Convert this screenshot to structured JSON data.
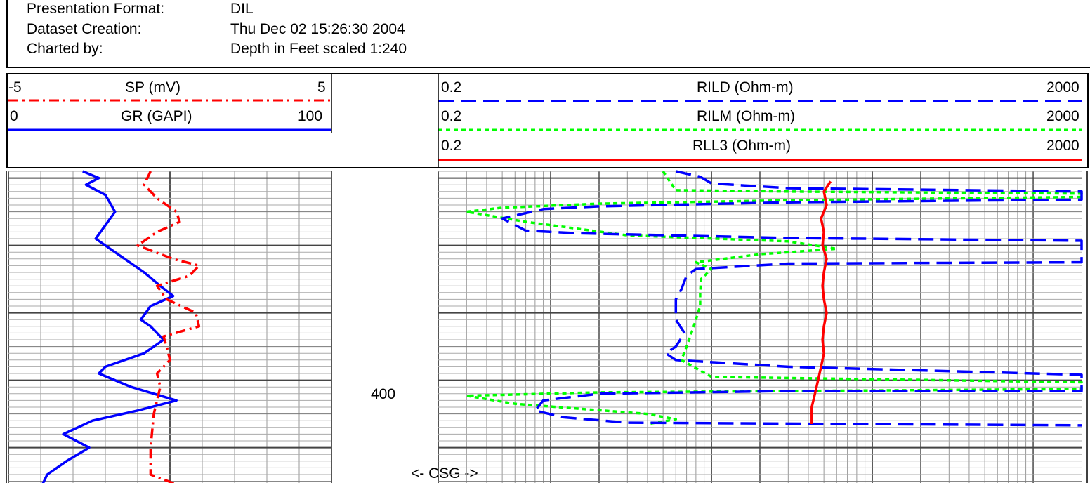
{
  "header": {
    "rows": [
      {
        "label": "Presentation Format:",
        "value": "DIL"
      },
      {
        "label": "Dataset Creation:",
        "value": "Thu Dec 02 15:26:30 2004"
      },
      {
        "label": "Charted by:",
        "value": "Depth in Feet scaled 1:240"
      }
    ]
  },
  "colors": {
    "red": "#ff0000",
    "blue": "#0000ff",
    "green": "#00ff00",
    "grid": "#888888"
  },
  "chart_data": [
    {
      "type": "line",
      "track": "left",
      "y_unit": "Depth in Feet",
      "depth_label": "400",
      "series": [
        {
          "name": "SP (mV)",
          "min": "-5",
          "max": "5",
          "xlim": [
            -5,
            5
          ],
          "color": "#ff0000",
          "style": "dash-dot",
          "points": [
            [
              -0.6,
              349
            ],
            [
              -0.8,
              351
            ],
            [
              -0.4,
              353
            ],
            [
              0.2,
              355
            ],
            [
              0.3,
              356.5
            ],
            [
              -0.4,
              358
            ],
            [
              -1,
              360
            ],
            [
              0.1,
              362
            ],
            [
              0.9,
              363
            ],
            [
              0.6,
              364.5
            ],
            [
              -0.4,
              366
            ],
            [
              -0.1,
              368
            ],
            [
              0.8,
              370
            ],
            [
              0.9,
              372
            ],
            [
              -0.2,
              373.5
            ],
            [
              -0.1,
              375
            ],
            [
              0,
              377
            ],
            [
              -0.4,
              379
            ],
            [
              -0.3,
              381
            ],
            [
              -0.5,
              385
            ],
            [
              -0.6,
              390
            ],
            [
              -0.6,
              394
            ],
            [
              0.5,
              396
            ]
          ]
        },
        {
          "name": "GR (GAPI)",
          "min": "0",
          "max": "100",
          "xlim": [
            0,
            100
          ],
          "color": "#0000ff",
          "style": "solid",
          "points": [
            [
              23,
              349
            ],
            [
              28,
              350
            ],
            [
              24,
              351
            ],
            [
              30,
              352.5
            ],
            [
              33,
              355
            ],
            [
              30,
              357
            ],
            [
              27,
              359
            ],
            [
              33,
              361
            ],
            [
              42,
              364
            ],
            [
              47,
              366
            ],
            [
              51,
              367.5
            ],
            [
              44,
              369
            ],
            [
              41,
              371
            ],
            [
              44,
              372
            ],
            [
              48,
              374
            ],
            [
              42,
              376
            ],
            [
              30,
              378
            ],
            [
              28,
              379
            ],
            [
              38,
              381
            ],
            [
              52,
              383
            ],
            [
              40,
              384.5
            ],
            [
              26,
              386
            ],
            [
              17,
              388
            ],
            [
              25,
              390
            ],
            [
              18,
              392
            ],
            [
              12,
              394
            ],
            [
              10,
              396
            ]
          ]
        }
      ]
    },
    {
      "type": "line",
      "track": "right",
      "x_scale": "log",
      "annotation": "<- CSG ->",
      "series": [
        {
          "name": "RILD (Ohm-m)",
          "min": "0.2",
          "max": "2000",
          "xlim": [
            0.2,
            2000
          ],
          "color": "#0000ff",
          "style": "dashed",
          "points": [
            [
              6,
              349
            ],
            [
              8.5,
              349.8
            ],
            [
              10,
              350.8
            ],
            [
              30,
              351.5
            ],
            [
              2000,
              352
            ],
            [
              2000,
              353.2
            ],
            [
              30,
              353.6
            ],
            [
              2,
              354.2
            ],
            [
              0.9,
              354.6
            ],
            [
              0.5,
              356
            ],
            [
              0.7,
              357.8
            ],
            [
              1.5,
              358.2
            ],
            [
              30,
              358.9
            ],
            [
              2000,
              359.3
            ],
            [
              2000,
              362.5
            ],
            [
              30,
              362.7
            ],
            [
              8,
              363.5
            ],
            [
              7,
              364.5
            ],
            [
              6.5,
              366.5
            ],
            [
              6,
              368
            ],
            [
              6,
              371
            ],
            [
              6.8,
              373
            ],
            [
              6,
              375
            ],
            [
              5.2,
              376
            ],
            [
              6,
              377
            ],
            [
              30,
              378
            ],
            [
              2000,
              379.2
            ],
            [
              2000,
              381.6
            ],
            [
              30,
              381.6
            ],
            [
              2,
              382
            ],
            [
              0.9,
              383
            ],
            [
              0.8,
              384.5
            ],
            [
              1.2,
              385.5
            ],
            [
              3,
              386.3
            ],
            [
              2000,
              386.7
            ]
          ]
        },
        {
          "name": "RILM (Ohm-m)",
          "min": "0.2",
          "max": "2000",
          "xlim": [
            0.2,
            2000
          ],
          "color": "#00ff00",
          "style": "dotted",
          "points": [
            [
              5,
              349
            ],
            [
              5.5,
              350.5
            ],
            [
              6,
              351.8
            ],
            [
              30,
              352
            ],
            [
              2000,
              352.3
            ],
            [
              2000,
              352.8
            ],
            [
              30,
              353.3
            ],
            [
              2,
              353.8
            ],
            [
              0.5,
              354.4
            ],
            [
              0.3,
              355
            ],
            [
              0.7,
              356.5
            ],
            [
              3,
              358.5
            ],
            [
              30,
              359.4
            ],
            [
              60,
              360.5
            ],
            [
              20,
              361.3
            ],
            [
              8,
              362.5
            ],
            [
              10,
              363.5
            ],
            [
              8.6,
              365
            ],
            [
              8.5,
              367
            ],
            [
              8.5,
              369
            ],
            [
              8,
              371
            ],
            [
              7.5,
              373
            ],
            [
              7,
              375
            ],
            [
              6.5,
              377
            ],
            [
              10,
              379.5
            ],
            [
              2000,
              380.3
            ],
            [
              2000,
              381.3
            ],
            [
              30,
              381.6
            ],
            [
              2,
              381.8
            ],
            [
              0.3,
              382.3
            ],
            [
              0.6,
              383.5
            ],
            [
              4,
              385
            ],
            [
              6,
              385.8
            ],
            [
              4,
              386.5
            ]
          ]
        },
        {
          "name": "RLL3 (Ohm-m)",
          "min": "0.2",
          "max": "2000",
          "xlim": [
            0.2,
            2000
          ],
          "color": "#ff0000",
          "style": "solid",
          "points": [
            [
              55,
              350.5
            ],
            [
              50,
              352
            ],
            [
              52,
              354
            ],
            [
              48,
              356
            ],
            [
              50,
              358
            ],
            [
              49,
              360
            ],
            [
              52,
              362
            ],
            [
              50,
              364
            ],
            [
              49,
              366
            ],
            [
              50,
              368
            ],
            [
              52,
              370
            ],
            [
              50,
              372
            ],
            [
              49,
              374
            ],
            [
              50,
              376
            ],
            [
              48,
              378
            ],
            [
              46,
              380
            ],
            [
              44,
              382
            ],
            [
              42,
              384
            ],
            [
              42,
              386.5
            ]
          ]
        }
      ]
    }
  ]
}
